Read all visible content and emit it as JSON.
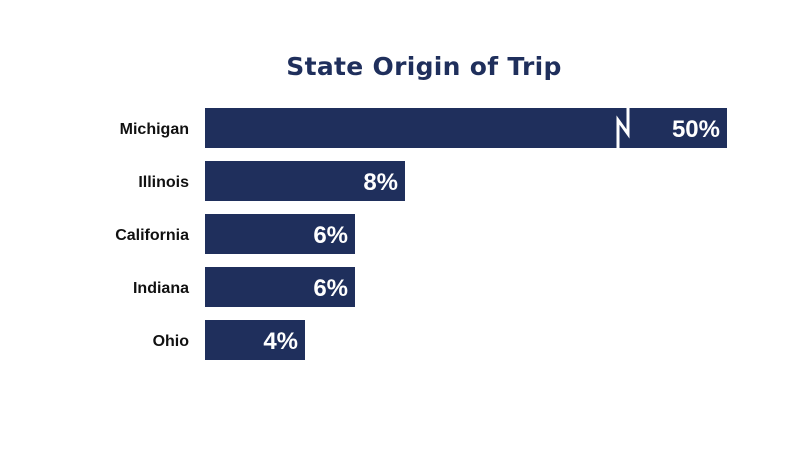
{
  "colors": {
    "bar": "#1f2f5c",
    "title": "#1f2f5c",
    "category_text": "#111111",
    "value_text": "#ffffff",
    "background": "#ffffff"
  },
  "chart_data": {
    "type": "bar",
    "orientation": "horizontal",
    "title": "State Origin of Trip",
    "categories": [
      "Michigan",
      "Illinois",
      "California",
      "Indiana",
      "Ohio"
    ],
    "values": [
      50,
      8,
      6,
      6,
      4
    ],
    "value_labels": [
      "50%",
      "8%",
      "6%",
      "6%",
      "4%"
    ],
    "axis_break_on": "Michigan",
    "xlabel": "",
    "ylabel": "",
    "grid": false,
    "legend": "none"
  }
}
